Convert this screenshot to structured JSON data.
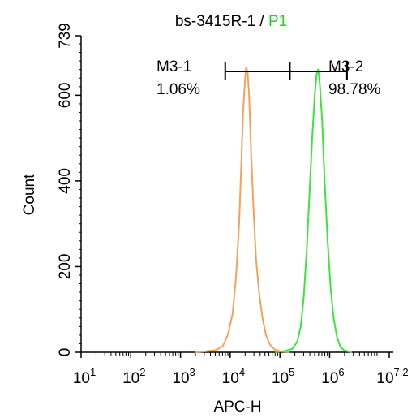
{
  "chart_data": {
    "type": "histogram",
    "title": {
      "sample": "bs-3415R-1",
      "separator": " / ",
      "gate": "P1"
    },
    "xlabel": "APC-H",
    "ylabel": "Count",
    "xscale": "log",
    "xlim": [
      1,
      7.2
    ],
    "ylim": [
      0,
      739
    ],
    "x_ticks": [
      {
        "base": "10",
        "exp": "1",
        "value": 1
      },
      {
        "base": "10",
        "exp": "2",
        "value": 2
      },
      {
        "base": "10",
        "exp": "3",
        "value": 3
      },
      {
        "base": "10",
        "exp": "4",
        "value": 4
      },
      {
        "base": "10",
        "exp": "5",
        "value": 5
      },
      {
        "base": "10",
        "exp": "6",
        "value": 6
      },
      {
        "base": "10",
        "exp": "7.2",
        "value": 7.2
      }
    ],
    "y_ticks": [
      {
        "label": "0",
        "value": 0
      },
      {
        "label": "200",
        "value": 200
      },
      {
        "label": "400",
        "value": 400
      },
      {
        "label": "600",
        "value": 600
      },
      {
        "label": "739",
        "value": 739
      }
    ],
    "markers": [
      {
        "name": "M3-1",
        "percent": "1.06%",
        "range": [
          3.9,
          5.2
        ]
      },
      {
        "name": "M3-2",
        "percent": "98.78%",
        "range": [
          5.2,
          6.35
        ]
      }
    ],
    "series": [
      {
        "color": "#f0a35e",
        "points": [
          [
            3.3,
            0
          ],
          [
            3.5,
            2
          ],
          [
            3.7,
            5
          ],
          [
            3.85,
            14
          ],
          [
            3.95,
            40
          ],
          [
            4.05,
            90
          ],
          [
            4.12,
            180
          ],
          [
            4.18,
            300
          ],
          [
            4.22,
            430
          ],
          [
            4.26,
            560
          ],
          [
            4.3,
            640
          ],
          [
            4.32,
            665
          ],
          [
            4.35,
            655
          ],
          [
            4.38,
            600
          ],
          [
            4.42,
            470
          ],
          [
            4.47,
            330
          ],
          [
            4.52,
            220
          ],
          [
            4.58,
            140
          ],
          [
            4.65,
            80
          ],
          [
            4.72,
            40
          ],
          [
            4.8,
            18
          ],
          [
            4.9,
            6
          ],
          [
            5.0,
            2
          ],
          [
            5.2,
            0
          ]
        ]
      },
      {
        "color": "#3fe23f",
        "points": [
          [
            4.9,
            0
          ],
          [
            5.1,
            3
          ],
          [
            5.25,
            8
          ],
          [
            5.35,
            25
          ],
          [
            5.42,
            60
          ],
          [
            5.48,
            130
          ],
          [
            5.54,
            240
          ],
          [
            5.6,
            380
          ],
          [
            5.65,
            500
          ],
          [
            5.7,
            600
          ],
          [
            5.74,
            650
          ],
          [
            5.77,
            660
          ],
          [
            5.8,
            630
          ],
          [
            5.85,
            540
          ],
          [
            5.9,
            400
          ],
          [
            5.96,
            260
          ],
          [
            6.02,
            150
          ],
          [
            6.08,
            80
          ],
          [
            6.15,
            35
          ],
          [
            6.22,
            12
          ],
          [
            6.3,
            4
          ],
          [
            6.45,
            0
          ]
        ]
      }
    ]
  }
}
